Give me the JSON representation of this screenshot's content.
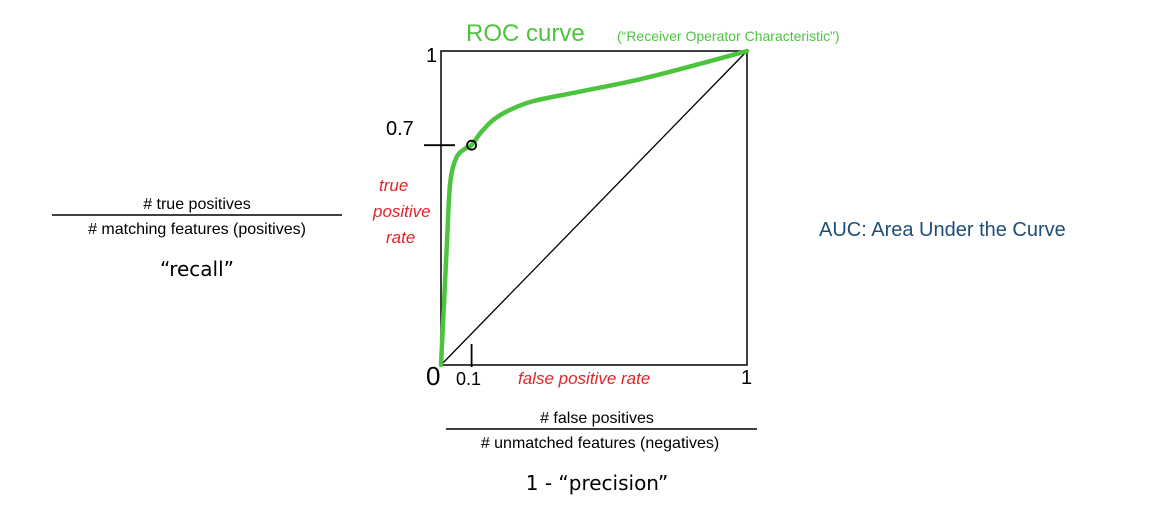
{
  "chart_data": {
    "type": "line",
    "title": "ROC curve",
    "subtitle": "(“Receiver Operator Characteristic”)",
    "xlabel": "false positive rate",
    "ylabel": "true positive rate",
    "ylabel_lines": [
      "true",
      "positive",
      "rate"
    ],
    "xlim": [
      0,
      1
    ],
    "ylim": [
      0,
      1
    ],
    "x_ticks": [
      "0",
      "0.1",
      "1"
    ],
    "y_ticks": [
      "0.7",
      "1"
    ],
    "series": [
      {
        "x": [
          0,
          0.01,
          0.02,
          0.03,
          0.05,
          0.08,
          0.1,
          0.13,
          0.17,
          0.22,
          0.3,
          0.45,
          0.65,
          0.85,
          1.0
        ],
        "y": [
          0,
          0.2,
          0.4,
          0.58,
          0.66,
          0.69,
          0.7,
          0.74,
          0.78,
          0.81,
          0.84,
          0.87,
          0.91,
          0.96,
          1.0
        ],
        "color": "#4cc43e"
      }
    ],
    "diagonal": {
      "x": [
        0,
        1
      ],
      "y": [
        0,
        1
      ],
      "color": "#000000"
    },
    "marker": {
      "x": 0.1,
      "y": 0.7
    },
    "grid": false,
    "annotations": {
      "auc": "AUC: Area Under the Curve"
    }
  },
  "formulas": {
    "recall_numerator": "# true positives",
    "recall_denominator": "# matching features (positives)",
    "recall_name": "“recall”",
    "fpr_numerator": "# false positives",
    "fpr_denominator": "# unmatched features (negatives)",
    "fpr_name": "1 - “precision”"
  },
  "colors": {
    "title_green": "#4cc43e",
    "label_red": "#e0242b",
    "auc_blue": "#1f4e79",
    "black": "#000000"
  }
}
